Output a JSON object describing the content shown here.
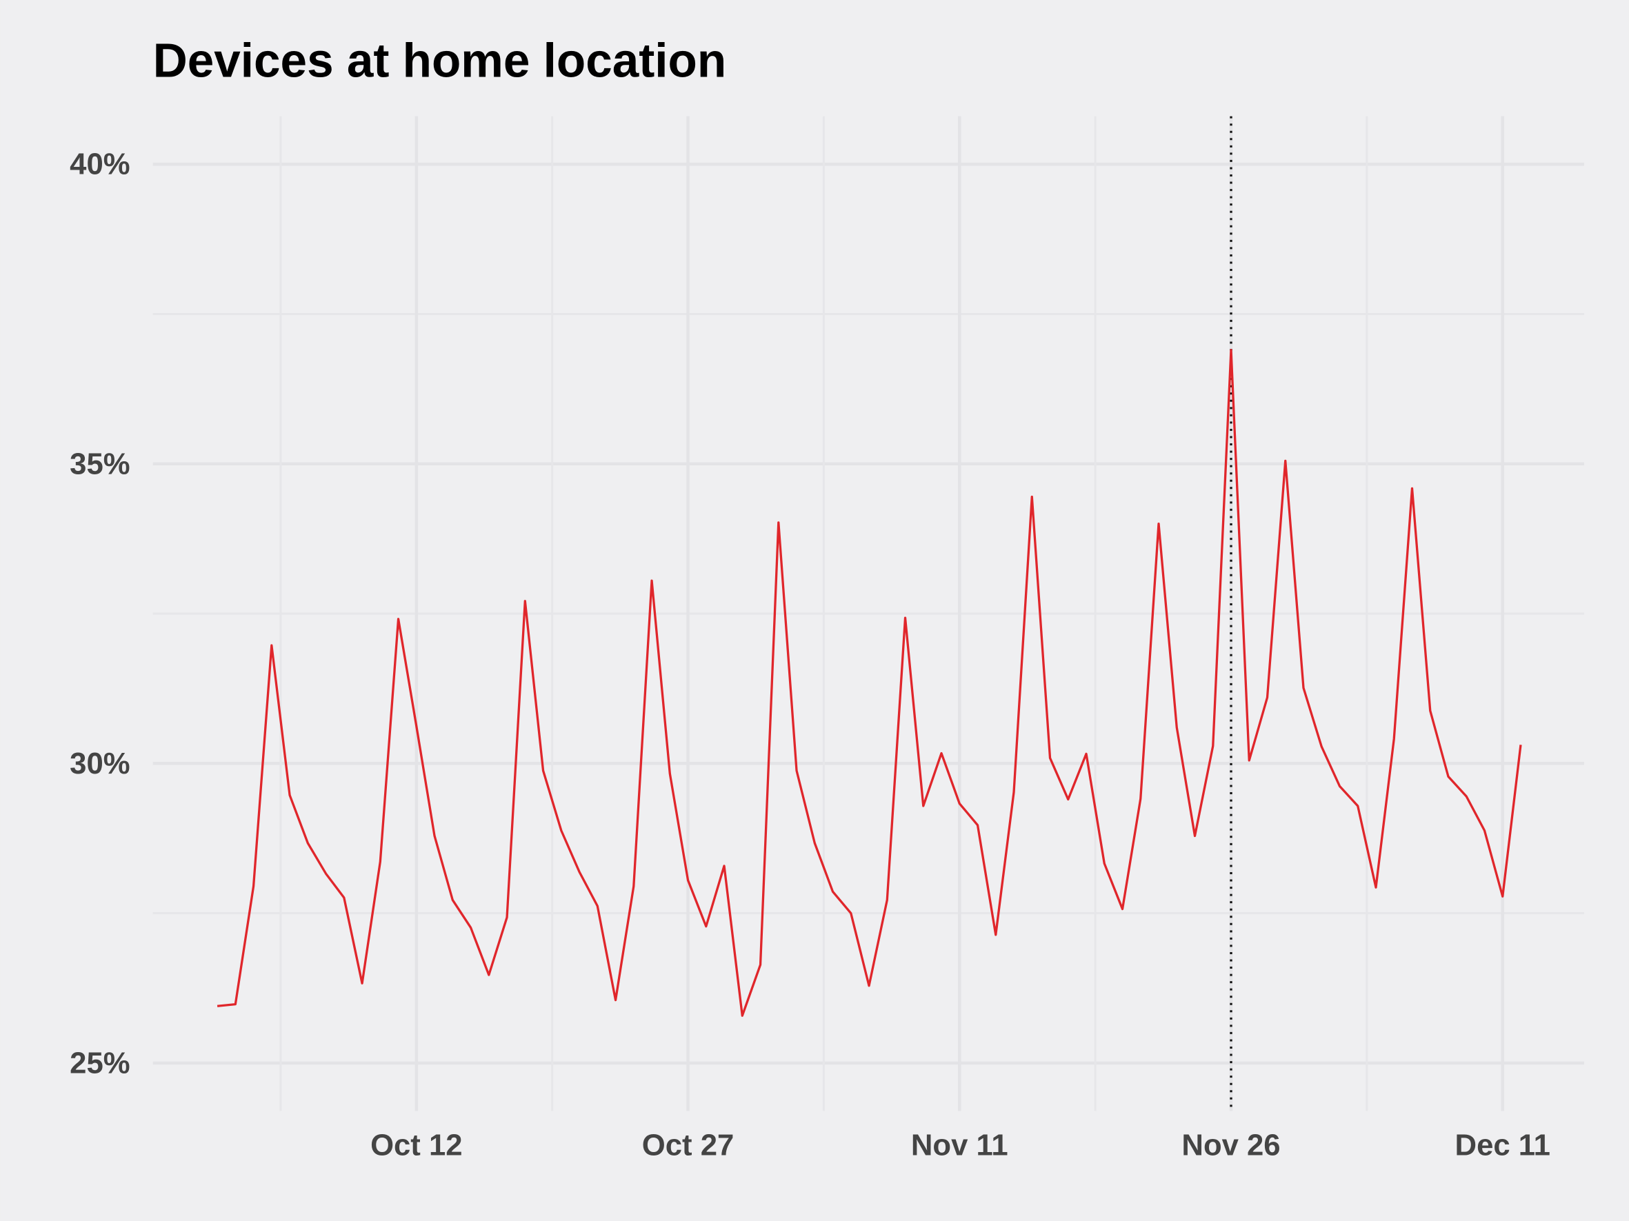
{
  "chart_data": {
    "type": "line",
    "title": "Devices at home location",
    "x": [
      "Oct 1",
      "Oct 2",
      "Oct 3",
      "Oct 4",
      "Oct 5",
      "Oct 6",
      "Oct 7",
      "Oct 8",
      "Oct 9",
      "Oct 10",
      "Oct 11",
      "Oct 12",
      "Oct 13",
      "Oct 14",
      "Oct 15",
      "Oct 16",
      "Oct 17",
      "Oct 18",
      "Oct 19",
      "Oct 20",
      "Oct 21",
      "Oct 22",
      "Oct 23",
      "Oct 24",
      "Oct 25",
      "Oct 26",
      "Oct 27",
      "Oct 28",
      "Oct 29",
      "Oct 30",
      "Oct 31",
      "Nov 1",
      "Nov 2",
      "Nov 3",
      "Nov 4",
      "Nov 5",
      "Nov 6",
      "Nov 7",
      "Nov 8",
      "Nov 9",
      "Nov 10",
      "Nov 11",
      "Nov 12",
      "Nov 13",
      "Nov 14",
      "Nov 15",
      "Nov 16",
      "Nov 17",
      "Nov 18",
      "Nov 19",
      "Nov 20",
      "Nov 21",
      "Nov 22",
      "Nov 23",
      "Nov 24",
      "Nov 25",
      "Nov 26",
      "Nov 27",
      "Nov 28",
      "Nov 29",
      "Nov 30",
      "Dec 1",
      "Dec 2",
      "Dec 3",
      "Dec 4",
      "Dec 5",
      "Dec 6",
      "Dec 7",
      "Dec 8",
      "Dec 9",
      "Dec 10",
      "Dec 11",
      "Dec 12"
    ],
    "series": [
      {
        "color": "#e0262b",
        "values": [
          25.95,
          25.98,
          27.95,
          31.97,
          29.47,
          28.67,
          28.16,
          27.76,
          26.33,
          28.36,
          32.41,
          30.62,
          28.79,
          27.72,
          27.26,
          26.47,
          27.43,
          32.71,
          29.88,
          28.88,
          28.19,
          27.62,
          26.05,
          27.95,
          33.05,
          29.83,
          28.05,
          27.28,
          28.29,
          25.79,
          26.64,
          34.02,
          29.88,
          28.67,
          27.86,
          27.5,
          26.29,
          27.72,
          32.43,
          29.29,
          30.17,
          29.33,
          28.97,
          27.14,
          29.52,
          34.45,
          30.09,
          29.4,
          30.16,
          28.33,
          27.57,
          29.41,
          34.0,
          30.6,
          28.79,
          30.29,
          36.9,
          30.05,
          31.1,
          35.05,
          31.26,
          30.28,
          29.62,
          29.29,
          27.93,
          30.41,
          34.59,
          30.88,
          29.78,
          29.45,
          28.88,
          27.78,
          30.31
        ]
      }
    ],
    "xticks": [
      "Oct 12",
      "Oct 27",
      "Nov 11",
      "Nov 26",
      "Dec 11"
    ],
    "vline": "Nov 26",
    "ylim": [
      24.2,
      40.8
    ],
    "yticks": [
      {
        "value": 25,
        "label": "25%"
      },
      {
        "value": 30,
        "label": "30%"
      },
      {
        "value": 35,
        "label": "35%"
      },
      {
        "value": 40,
        "label": "40%"
      }
    ],
    "grid": true
  }
}
